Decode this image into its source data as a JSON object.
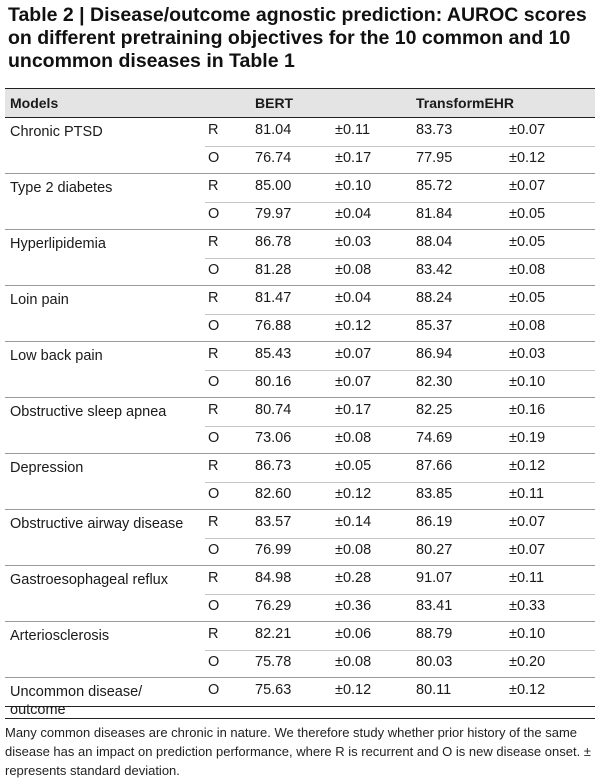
{
  "title": "Table 2 | Disease/outcome agnostic prediction: AUROC scores on different pretraining objectives for the 10 common and 10 uncommon diseases in Table 1",
  "header": {
    "models": "Models",
    "bert": "BERT",
    "transformehr": "TransformEHR"
  },
  "groups": [
    {
      "name": "Chronic PTSD",
      "rows": [
        {
          "ro": "R",
          "bert": "81.04",
          "bert_sd": "±0.11",
          "tehr": "83.73",
          "tehr_sd": "±0.07"
        },
        {
          "ro": "O",
          "bert": "76.74",
          "bert_sd": "±0.17",
          "tehr": "77.95",
          "tehr_sd": "±0.12"
        }
      ]
    },
    {
      "name": "Type 2 diabetes",
      "rows": [
        {
          "ro": "R",
          "bert": "85.00",
          "bert_sd": "±0.10",
          "tehr": "85.72",
          "tehr_sd": "±0.07"
        },
        {
          "ro": "O",
          "bert": "79.97",
          "bert_sd": "±0.04",
          "tehr": "81.84",
          "tehr_sd": "±0.05"
        }
      ]
    },
    {
      "name": "Hyperlipidemia",
      "rows": [
        {
          "ro": "R",
          "bert": "86.78",
          "bert_sd": "±0.03",
          "tehr": "88.04",
          "tehr_sd": "±0.05"
        },
        {
          "ro": "O",
          "bert": "81.28",
          "bert_sd": "±0.08",
          "tehr": "83.42",
          "tehr_sd": "±0.08"
        }
      ]
    },
    {
      "name": "Loin pain",
      "rows": [
        {
          "ro": "R",
          "bert": "81.47",
          "bert_sd": "±0.04",
          "tehr": "88.24",
          "tehr_sd": "±0.05"
        },
        {
          "ro": "O",
          "bert": "76.88",
          "bert_sd": "±0.12",
          "tehr": "85.37",
          "tehr_sd": "±0.08"
        }
      ]
    },
    {
      "name": "Low back pain",
      "rows": [
        {
          "ro": "R",
          "bert": "85.43",
          "bert_sd": "±0.07",
          "tehr": "86.94",
          "tehr_sd": "±0.03"
        },
        {
          "ro": "O",
          "bert": "80.16",
          "bert_sd": "±0.07",
          "tehr": "82.30",
          "tehr_sd": "±0.10"
        }
      ]
    },
    {
      "name": "Obstructive sleep apnea",
      "rows": [
        {
          "ro": "R",
          "bert": "80.74",
          "bert_sd": "±0.17",
          "tehr": "82.25",
          "tehr_sd": "±0.16"
        },
        {
          "ro": "O",
          "bert": "73.06",
          "bert_sd": "±0.08",
          "tehr": "74.69",
          "tehr_sd": "±0.19"
        }
      ]
    },
    {
      "name": "Depression",
      "rows": [
        {
          "ro": "R",
          "bert": "86.73",
          "bert_sd": "±0.05",
          "tehr": "87.66",
          "tehr_sd": "±0.12"
        },
        {
          "ro": "O",
          "bert": "82.60",
          "bert_sd": "±0.12",
          "tehr": "83.85",
          "tehr_sd": "±0.11"
        }
      ]
    },
    {
      "name": "Obstructive airway disease",
      "rows": [
        {
          "ro": "R",
          "bert": "83.57",
          "bert_sd": "±0.14",
          "tehr": "86.19",
          "tehr_sd": "±0.07"
        },
        {
          "ro": "O",
          "bert": "76.99",
          "bert_sd": "±0.08",
          "tehr": "80.27",
          "tehr_sd": "±0.07"
        }
      ]
    },
    {
      "name": "Gastroesophageal reflux",
      "rows": [
        {
          "ro": "R",
          "bert": "84.98",
          "bert_sd": "±0.28",
          "tehr": "91.07",
          "tehr_sd": "±0.11"
        },
        {
          "ro": "O",
          "bert": "76.29",
          "bert_sd": "±0.36",
          "tehr": "83.41",
          "tehr_sd": "±0.33"
        }
      ]
    },
    {
      "name": "Arteriosclerosis",
      "rows": [
        {
          "ro": "R",
          "bert": "82.21",
          "bert_sd": "±0.06",
          "tehr": "88.79",
          "tehr_sd": "±0.10"
        },
        {
          "ro": "O",
          "bert": "75.78",
          "bert_sd": "±0.08",
          "tehr": "80.03",
          "tehr_sd": "±0.20"
        }
      ]
    },
    {
      "name": "Uncommon disease/ outcome",
      "rows": [
        {
          "ro": "O",
          "bert": "75.63",
          "bert_sd": "±0.12",
          "tehr": "80.11",
          "tehr_sd": "±0.12"
        }
      ]
    }
  ],
  "footnote": "Many common diseases are chronic in nature. We therefore study whether prior history of the same disease has an impact on prediction performance, where R is recurrent and O is new disease onset. ± represents standard deviation."
}
